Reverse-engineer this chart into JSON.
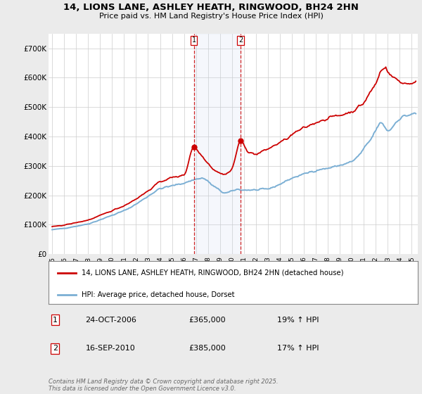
{
  "title": "14, LIONS LANE, ASHLEY HEATH, RINGWOOD, BH24 2HN",
  "subtitle": "Price paid vs. HM Land Registry's House Price Index (HPI)",
  "ylim": [
    0,
    750000
  ],
  "yticks": [
    0,
    100000,
    200000,
    300000,
    400000,
    500000,
    600000,
    700000
  ],
  "ytick_labels": [
    "£0",
    "£100K",
    "£200K",
    "£300K",
    "£400K",
    "£500K",
    "£600K",
    "£700K"
  ],
  "background_color": "#ebebeb",
  "plot_bg_color": "#ffffff",
  "hpi_color": "#7bafd4",
  "price_color": "#cc0000",
  "vline_color": "#cc0000",
  "shade_color": "#ddeeff",
  "purchase1_year": 2006.82,
  "purchase2_year": 2010.72,
  "legend_property": "14, LIONS LANE, ASHLEY HEATH, RINGWOOD, BH24 2HN (detached house)",
  "legend_hpi": "HPI: Average price, detached house, Dorset",
  "table_data": [
    {
      "num": "1",
      "date": "24-OCT-2006",
      "price": "£365,000",
      "hpi": "19% ↑ HPI"
    },
    {
      "num": "2",
      "date": "16-SEP-2010",
      "price": "£385,000",
      "hpi": "17% ↑ HPI"
    }
  ],
  "footer": "Contains HM Land Registry data © Crown copyright and database right 2025.\nThis data is licensed under the Open Government Licence v3.0.",
  "xlim_left": 1994.7,
  "xlim_right": 2025.5
}
